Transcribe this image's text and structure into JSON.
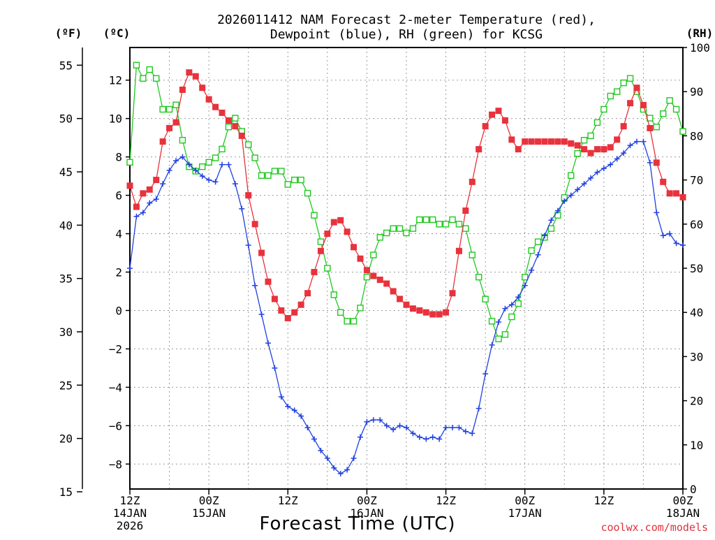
{
  "chart_data": {
    "type": "line",
    "title_line1": "2026011412 NAM Forecast 2-meter Temperature (red),",
    "title_line2": "Dewpoint (blue), RH (green) for KCSG",
    "xlabel": "Forecast Time (UTC)",
    "credit": "coolwx.com/models",
    "unit_labels": {
      "fahrenheit": "(ºF)",
      "celsius": "(ºC)",
      "rh": "(RH)"
    },
    "axes": {
      "x_hours_range": [
        0,
        84
      ],
      "celsius_range": [
        -9.3,
        13.7
      ],
      "fahrenheit_range": [
        15.26,
        56.66
      ],
      "rh_range": [
        0,
        100
      ],
      "grid": true
    },
    "x_ticks": [
      {
        "hour": 0,
        "line1": "12Z",
        "line2": "14JAN",
        "line3": "2026"
      },
      {
        "hour": 12,
        "line1": "00Z",
        "line2": "15JAN",
        "line3": ""
      },
      {
        "hour": 24,
        "line1": "12Z",
        "line2": "",
        "line3": ""
      },
      {
        "hour": 36,
        "line1": "00Z",
        "line2": "16JAN",
        "line3": ""
      },
      {
        "hour": 48,
        "line1": "12Z",
        "line2": "",
        "line3": ""
      },
      {
        "hour": 60,
        "line1": "00Z",
        "line2": "17JAN",
        "line3": ""
      },
      {
        "hour": 72,
        "line1": "12Z",
        "line2": "",
        "line3": ""
      },
      {
        "hour": 84,
        "line1": "00Z",
        "line2": "18JAN",
        "line3": ""
      }
    ],
    "celsius_ticks": [
      -8,
      -6,
      -4,
      -2,
      0,
      2,
      4,
      6,
      8,
      10,
      12
    ],
    "fahrenheit_ticks": [
      15,
      20,
      25,
      30,
      35,
      40,
      45,
      50,
      55
    ],
    "rh_ticks": [
      0,
      10,
      20,
      30,
      40,
      50,
      60,
      70,
      80,
      90,
      100
    ],
    "colors": {
      "temperature": "#e8323c",
      "dewpoint": "#2040e0",
      "rh": "#20c820"
    },
    "series": [
      {
        "name": "Temperature",
        "units": "C",
        "x": [
          0,
          1,
          2,
          3,
          4,
          5,
          6,
          7,
          8,
          9,
          10,
          11,
          12,
          13,
          14,
          15,
          16,
          17,
          18,
          19,
          20,
          21,
          22,
          23,
          24,
          25,
          26,
          27,
          28,
          29,
          30,
          31,
          32,
          33,
          34,
          35,
          36,
          37,
          38,
          39,
          40,
          41,
          42,
          43,
          44,
          45,
          46,
          47,
          48,
          49,
          50,
          51,
          52,
          53,
          54,
          55,
          56,
          57,
          58,
          59,
          60,
          61,
          62,
          63,
          64,
          65,
          66,
          67,
          68,
          69,
          70,
          71,
          72,
          73,
          74,
          75,
          76,
          77,
          78,
          79,
          80,
          81,
          82,
          83,
          84
        ],
        "values": [
          6.5,
          5.4,
          6.1,
          6.3,
          6.8,
          8.8,
          9.5,
          9.8,
          11.5,
          12.4,
          12.2,
          11.6,
          11.0,
          10.6,
          10.3,
          9.9,
          9.6,
          9.1,
          6.0,
          4.5,
          3.0,
          1.5,
          0.6,
          0.0,
          -0.4,
          -0.1,
          0.3,
          0.9,
          2.0,
          3.1,
          4.0,
          4.6,
          4.7,
          4.1,
          3.3,
          2.7,
          2.1,
          1.8,
          1.6,
          1.4,
          1.0,
          0.6,
          0.3,
          0.1,
          0.0,
          -0.1,
          -0.2,
          -0.2,
          -0.1,
          0.9,
          3.1,
          5.2,
          6.7,
          8.4,
          9.6,
          10.2,
          10.4,
          9.9,
          8.9,
          8.4,
          8.8,
          8.8,
          8.8,
          8.8,
          8.8,
          8.8,
          8.8,
          8.7,
          8.6,
          8.4,
          8.2,
          8.4,
          8.4,
          8.5,
          8.9,
          9.6,
          10.8,
          11.6,
          10.7,
          9.5,
          7.7,
          6.7,
          6.1,
          6.1,
          5.9
        ]
      },
      {
        "name": "Dewpoint",
        "units": "C",
        "x": [
          0,
          1,
          2,
          3,
          4,
          5,
          6,
          7,
          8,
          9,
          10,
          11,
          12,
          13,
          14,
          15,
          16,
          17,
          18,
          19,
          20,
          21,
          22,
          23,
          24,
          25,
          26,
          27,
          28,
          29,
          30,
          31,
          32,
          33,
          34,
          35,
          36,
          37,
          38,
          39,
          40,
          41,
          42,
          43,
          44,
          45,
          46,
          47,
          48,
          49,
          50,
          51,
          52,
          53,
          54,
          55,
          56,
          57,
          58,
          59,
          60,
          61,
          62,
          63,
          64,
          65,
          66,
          67,
          68,
          69,
          70,
          71,
          72,
          73,
          74,
          75,
          76,
          77,
          78,
          79,
          80,
          81,
          82,
          83,
          84
        ],
        "values": [
          2.2,
          4.9,
          5.1,
          5.6,
          5.8,
          6.6,
          7.3,
          7.8,
          8.0,
          7.6,
          7.3,
          7.0,
          6.8,
          6.7,
          7.6,
          7.6,
          6.6,
          5.3,
          3.4,
          1.3,
          -0.2,
          -1.7,
          -3.0,
          -4.5,
          -5.0,
          -5.2,
          -5.5,
          -6.1,
          -6.7,
          -7.3,
          -7.7,
          -8.2,
          -8.5,
          -8.3,
          -7.7,
          -6.6,
          -5.8,
          -5.7,
          -5.7,
          -6.0,
          -6.2,
          -6.0,
          -6.1,
          -6.4,
          -6.6,
          -6.7,
          -6.6,
          -6.7,
          -6.1,
          -6.1,
          -6.1,
          -6.3,
          -6.4,
          -5.1,
          -3.3,
          -1.8,
          -0.6,
          0.1,
          0.3,
          0.7,
          1.3,
          2.1,
          2.9,
          3.9,
          4.7,
          5.2,
          5.7,
          6.0,
          6.3,
          6.6,
          6.9,
          7.2,
          7.4,
          7.6,
          7.9,
          8.2,
          8.6,
          8.8,
          8.8,
          7.7,
          5.1,
          3.9,
          4.0,
          3.5,
          3.4
        ]
      },
      {
        "name": "RH",
        "units": "%",
        "x": [
          0,
          1,
          2,
          3,
          4,
          5,
          6,
          7,
          8,
          9,
          10,
          11,
          12,
          13,
          14,
          15,
          16,
          17,
          18,
          19,
          20,
          21,
          22,
          23,
          24,
          25,
          26,
          27,
          28,
          29,
          30,
          31,
          32,
          33,
          34,
          35,
          36,
          37,
          38,
          39,
          40,
          41,
          42,
          43,
          44,
          45,
          46,
          47,
          48,
          49,
          50,
          51,
          52,
          53,
          54,
          55,
          56,
          57,
          58,
          59,
          60,
          61,
          62,
          63,
          64,
          65,
          66,
          67,
          68,
          69,
          70,
          71,
          72,
          73,
          74,
          75,
          76,
          77,
          78,
          79,
          80,
          81,
          82,
          83,
          84
        ],
        "values": [
          74,
          96,
          93,
          95,
          93,
          86,
          86,
          87,
          79,
          73,
          72,
          73,
          74,
          75,
          77,
          82,
          84,
          81,
          78,
          75,
          71,
          71,
          72,
          72,
          69,
          70,
          70,
          67,
          62,
          56,
          50,
          44,
          40,
          38,
          38,
          41,
          48,
          53,
          57,
          58,
          59,
          59,
          58,
          59,
          61,
          61,
          61,
          60,
          60,
          61,
          60,
          59,
          53,
          48,
          43,
          38,
          34,
          35,
          39,
          42,
          48,
          54,
          56,
          57,
          59,
          62,
          66,
          71,
          76,
          79,
          80,
          83,
          86,
          89,
          90,
          92,
          93,
          90,
          86,
          84,
          82,
          85,
          88,
          86,
          81
        ]
      }
    ]
  }
}
